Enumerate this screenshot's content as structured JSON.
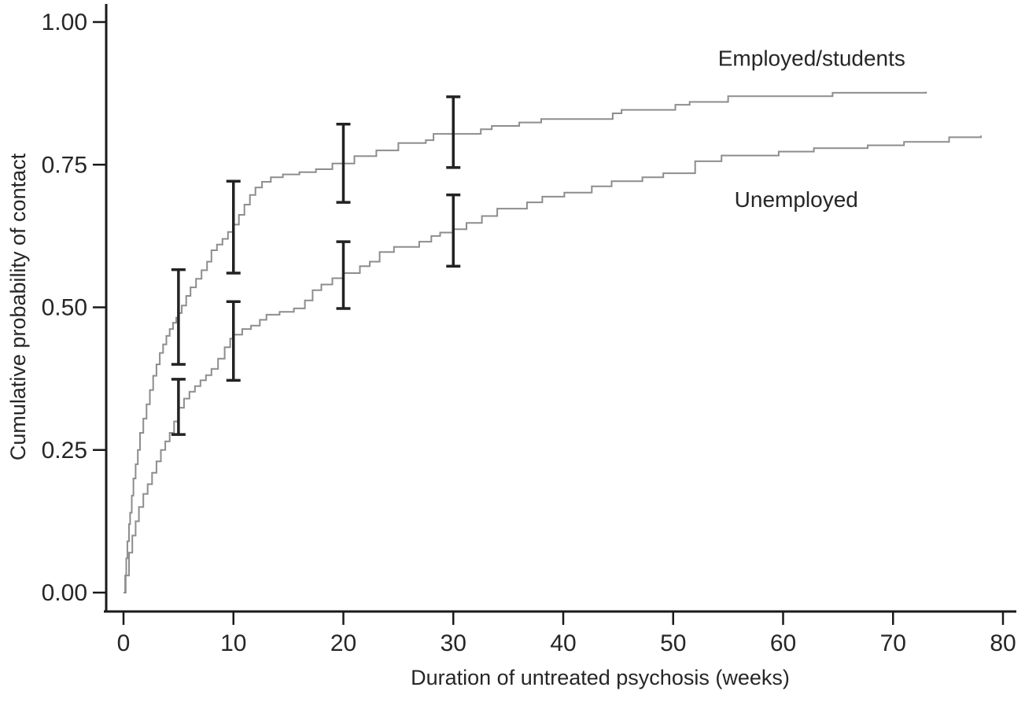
{
  "figure": {
    "background": "#ffffff",
    "axis_color": "#1a1a1a",
    "text_color": "#262626"
  },
  "chart_data": {
    "type": "line",
    "subtype": "kaplan-meier-step",
    "title": "",
    "xlabel": "Duration of untreated psychosis (weeks)",
    "ylabel": "Cumulative probability of contact",
    "xlim": [
      0,
      80
    ],
    "ylim": [
      0,
      1
    ],
    "grid": false,
    "legend": "inline-labels",
    "xticks": {
      "values": [
        0,
        10,
        20,
        30,
        40,
        50,
        60,
        70,
        80
      ],
      "labels": [
        "0",
        "10",
        "20",
        "30",
        "40",
        "50",
        "60",
        "70",
        "80"
      ]
    },
    "yticks": {
      "values": [
        0,
        0.25,
        0.5,
        0.75,
        1.0
      ],
      "labels": [
        "0.00",
        "0.25",
        "0.50",
        "0.75",
        "1.00"
      ]
    },
    "series": [
      {
        "name": "Employed/students",
        "color": "#8d8d8d",
        "label": {
          "text": "Employed/students",
          "x": 62.6,
          "y": 0.937
        },
        "points": [
          [
            0,
            0
          ],
          [
            0.15,
            0.03
          ],
          [
            0.25,
            0.06
          ],
          [
            0.35,
            0.09
          ],
          [
            0.5,
            0.12
          ],
          [
            0.6,
            0.14
          ],
          [
            0.75,
            0.17
          ],
          [
            0.9,
            0.2
          ],
          [
            1.1,
            0.225
          ],
          [
            1.3,
            0.25
          ],
          [
            1.5,
            0.28
          ],
          [
            1.8,
            0.305
          ],
          [
            2.1,
            0.33
          ],
          [
            2.4,
            0.355
          ],
          [
            2.7,
            0.38
          ],
          [
            3.0,
            0.4
          ],
          [
            3.3,
            0.42
          ],
          [
            3.6,
            0.435
          ],
          [
            3.9,
            0.45
          ],
          [
            4.2,
            0.462
          ],
          [
            4.5,
            0.473
          ],
          [
            4.8,
            0.482
          ],
          [
            5.0,
            0.49
          ],
          [
            5.3,
            0.503
          ],
          [
            5.7,
            0.52
          ],
          [
            6.1,
            0.535
          ],
          [
            6.6,
            0.55
          ],
          [
            7.1,
            0.565
          ],
          [
            7.6,
            0.58
          ],
          [
            8.0,
            0.6
          ],
          [
            8.5,
            0.61
          ],
          [
            9.0,
            0.62
          ],
          [
            9.5,
            0.632
          ],
          [
            10.0,
            0.645
          ],
          [
            10.5,
            0.662
          ],
          [
            11.0,
            0.68
          ],
          [
            11.5,
            0.697
          ],
          [
            12.0,
            0.71
          ],
          [
            12.6,
            0.72
          ],
          [
            13.4,
            0.728
          ],
          [
            14.5,
            0.733
          ],
          [
            16.0,
            0.737
          ],
          [
            17.5,
            0.742
          ],
          [
            19.0,
            0.752
          ],
          [
            21.0,
            0.765
          ],
          [
            23.0,
            0.775
          ],
          [
            25.0,
            0.788
          ],
          [
            27.5,
            0.793
          ],
          [
            28.2,
            0.804
          ],
          [
            32.5,
            0.812
          ],
          [
            33.5,
            0.818
          ],
          [
            36.0,
            0.824
          ],
          [
            38.0,
            0.83
          ],
          [
            44.5,
            0.84
          ],
          [
            45.3,
            0.846
          ],
          [
            50.2,
            0.855
          ],
          [
            51.5,
            0.86
          ],
          [
            55.0,
            0.87
          ],
          [
            64.5,
            0.876
          ],
          [
            73.0,
            0.878
          ]
        ]
      },
      {
        "name": "Unemployed",
        "color": "#8d8d8d",
        "label": {
          "text": "Unemployed",
          "x": 61.2,
          "y": 0.69
        },
        "points": [
          [
            0,
            0
          ],
          [
            0.2,
            0.03
          ],
          [
            0.5,
            0.07
          ],
          [
            0.8,
            0.1
          ],
          [
            1.1,
            0.125
          ],
          [
            1.4,
            0.15
          ],
          [
            1.8,
            0.173
          ],
          [
            2.2,
            0.19
          ],
          [
            2.6,
            0.21
          ],
          [
            3.0,
            0.23
          ],
          [
            3.4,
            0.25
          ],
          [
            3.8,
            0.265
          ],
          [
            4.2,
            0.28
          ],
          [
            4.6,
            0.3
          ],
          [
            5.0,
            0.324
          ],
          [
            5.5,
            0.34
          ],
          [
            6.0,
            0.352
          ],
          [
            6.5,
            0.362
          ],
          [
            7.0,
            0.372
          ],
          [
            7.5,
            0.381
          ],
          [
            8.0,
            0.392
          ],
          [
            8.6,
            0.41
          ],
          [
            9.2,
            0.43
          ],
          [
            9.7,
            0.445
          ],
          [
            10.0,
            0.452
          ],
          [
            10.8,
            0.462
          ],
          [
            11.6,
            0.468
          ],
          [
            12.4,
            0.478
          ],
          [
            13.0,
            0.487
          ],
          [
            14.2,
            0.492
          ],
          [
            15.5,
            0.498
          ],
          [
            16.5,
            0.512
          ],
          [
            17.2,
            0.53
          ],
          [
            18.0,
            0.54
          ],
          [
            19.0,
            0.551
          ],
          [
            20.0,
            0.56
          ],
          [
            21.5,
            0.572
          ],
          [
            22.4,
            0.58
          ],
          [
            23.3,
            0.597
          ],
          [
            24.6,
            0.606
          ],
          [
            26.9,
            0.615
          ],
          [
            28.0,
            0.625
          ],
          [
            28.8,
            0.631
          ],
          [
            30.0,
            0.637
          ],
          [
            31.2,
            0.648
          ],
          [
            32.6,
            0.66
          ],
          [
            34.0,
            0.673
          ],
          [
            36.7,
            0.684
          ],
          [
            38.1,
            0.694
          ],
          [
            40.1,
            0.701
          ],
          [
            42.6,
            0.712
          ],
          [
            44.4,
            0.721
          ],
          [
            47.2,
            0.728
          ],
          [
            49.1,
            0.735
          ],
          [
            52.0,
            0.756
          ],
          [
            54.4,
            0.766
          ],
          [
            59.6,
            0.773
          ],
          [
            62.8,
            0.779
          ],
          [
            67.7,
            0.784
          ],
          [
            71.0,
            0.79
          ],
          [
            75.1,
            0.798
          ],
          [
            78.0,
            0.801
          ]
        ]
      }
    ],
    "error_bars": {
      "color": "#222222",
      "items": [
        {
          "series": "Employed/students",
          "x": 5,
          "y": 0.49,
          "low": 0.4,
          "high": 0.566
        },
        {
          "series": "Employed/students",
          "x": 10,
          "y": 0.643,
          "low": 0.56,
          "high": 0.721
        },
        {
          "series": "Employed/students",
          "x": 20,
          "y": 0.752,
          "low": 0.684,
          "high": 0.821
        },
        {
          "series": "Employed/students",
          "x": 30,
          "y": 0.804,
          "low": 0.745,
          "high": 0.869
        },
        {
          "series": "Unemployed",
          "x": 5,
          "y": 0.324,
          "low": 0.277,
          "high": 0.374
        },
        {
          "series": "Unemployed",
          "x": 10,
          "y": 0.452,
          "low": 0.372,
          "high": 0.51
        },
        {
          "series": "Unemployed",
          "x": 20,
          "y": 0.56,
          "low": 0.498,
          "high": 0.615
        },
        {
          "series": "Unemployed",
          "x": 30,
          "y": 0.636,
          "low": 0.572,
          "high": 0.697
        }
      ]
    }
  }
}
